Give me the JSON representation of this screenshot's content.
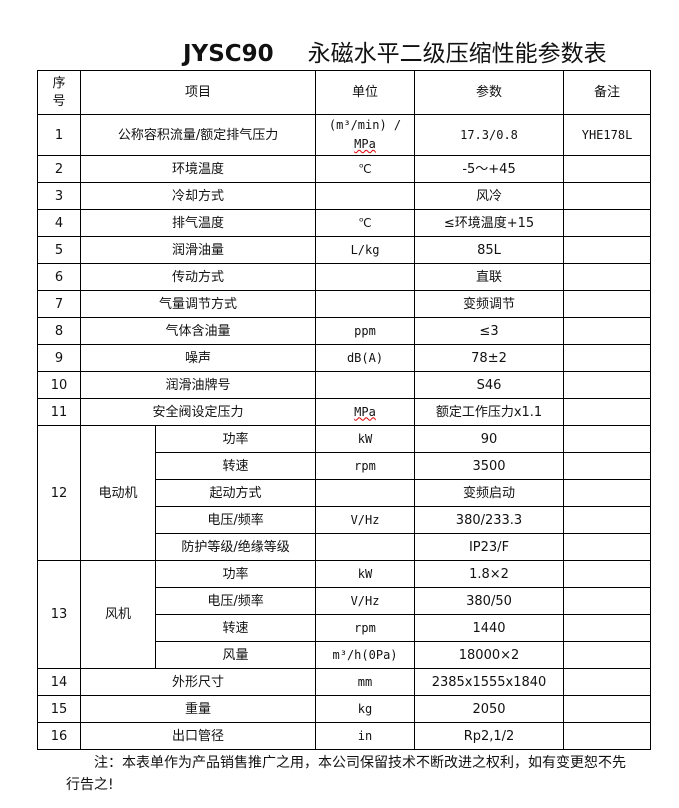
{
  "title": {
    "model": "JYSC90",
    "name": "永磁水平二级压缩性能参数表"
  },
  "headers": {
    "seq": "序号",
    "item": "项目",
    "unit": "单位",
    "param": "参数",
    "note": "备注"
  },
  "rows": [
    {
      "seq": "1",
      "item": "公称容积流量/额定排气压力",
      "unit_a": "(m³/min) /",
      "unit_b": "MPa",
      "param": "17.3/0.8",
      "note": "YHE178L"
    },
    {
      "seq": "2",
      "item": "环境温度",
      "unit": "℃",
      "param": "-5～+45",
      "note": ""
    },
    {
      "seq": "3",
      "item": "冷却方式",
      "unit": "",
      "param": "风冷",
      "note": ""
    },
    {
      "seq": "4",
      "item": "排气温度",
      "unit": "℃",
      "param": "≤环境温度+15",
      "note": ""
    },
    {
      "seq": "5",
      "item": "润滑油量",
      "unit": "L/kg",
      "param": "85L",
      "note": ""
    },
    {
      "seq": "6",
      "item": "传动方式",
      "unit": "",
      "param": "直联",
      "note": ""
    },
    {
      "seq": "7",
      "item": "气量调节方式",
      "unit": "",
      "param": "变频调节",
      "note": ""
    },
    {
      "seq": "8",
      "item": "气体含油量",
      "unit": "ppm",
      "param": "≤3",
      "note": ""
    },
    {
      "seq": "9",
      "item": "噪声",
      "unit": "dB(A)",
      "param": "78±2",
      "note": ""
    },
    {
      "seq": "10",
      "item": "润滑油牌号",
      "unit": "",
      "param": "S46",
      "note": ""
    },
    {
      "seq": "11",
      "item": "安全阀设定压力",
      "unit": "MPa",
      "param": "额定工作压力x1.1",
      "note": ""
    }
  ],
  "motor": {
    "seq": "12",
    "label": "电动机",
    "items": [
      {
        "item": "功率",
        "unit": "kW",
        "param": "90"
      },
      {
        "item": "转速",
        "unit": "rpm",
        "param": "3500"
      },
      {
        "item": "起动方式",
        "unit": "",
        "param": "变频启动"
      },
      {
        "item": "电压/频率",
        "unit": "V/Hz",
        "param": "380/233.3"
      },
      {
        "item": "防护等级/绝缘等级",
        "unit": "",
        "param": "IP23/F"
      }
    ]
  },
  "fan": {
    "seq": "13",
    "label": "风机",
    "items": [
      {
        "item": "功率",
        "unit": "kW",
        "param": "1.8×2"
      },
      {
        "item": "电压/频率",
        "unit": "V/Hz",
        "param": "380/50"
      },
      {
        "item": "转速",
        "unit": "rpm",
        "param": "1440"
      },
      {
        "item": "风量",
        "unit": "m³/h(0Pa)",
        "param": "18000×2"
      }
    ]
  },
  "tail": [
    {
      "seq": "14",
      "item": "外形尺寸",
      "unit": "mm",
      "param": "2385x1555x1840",
      "note": ""
    },
    {
      "seq": "15",
      "item": "重量",
      "unit": "kg",
      "param": "2050",
      "note": ""
    },
    {
      "seq": "16",
      "item": "出口管径",
      "unit": "in",
      "param": "Rp2,1/2",
      "note": ""
    }
  ],
  "footnote": "注：本表单作为产品销售推广之用，本公司保留技术不断改进之权利，如有变更恕不先行告之!"
}
